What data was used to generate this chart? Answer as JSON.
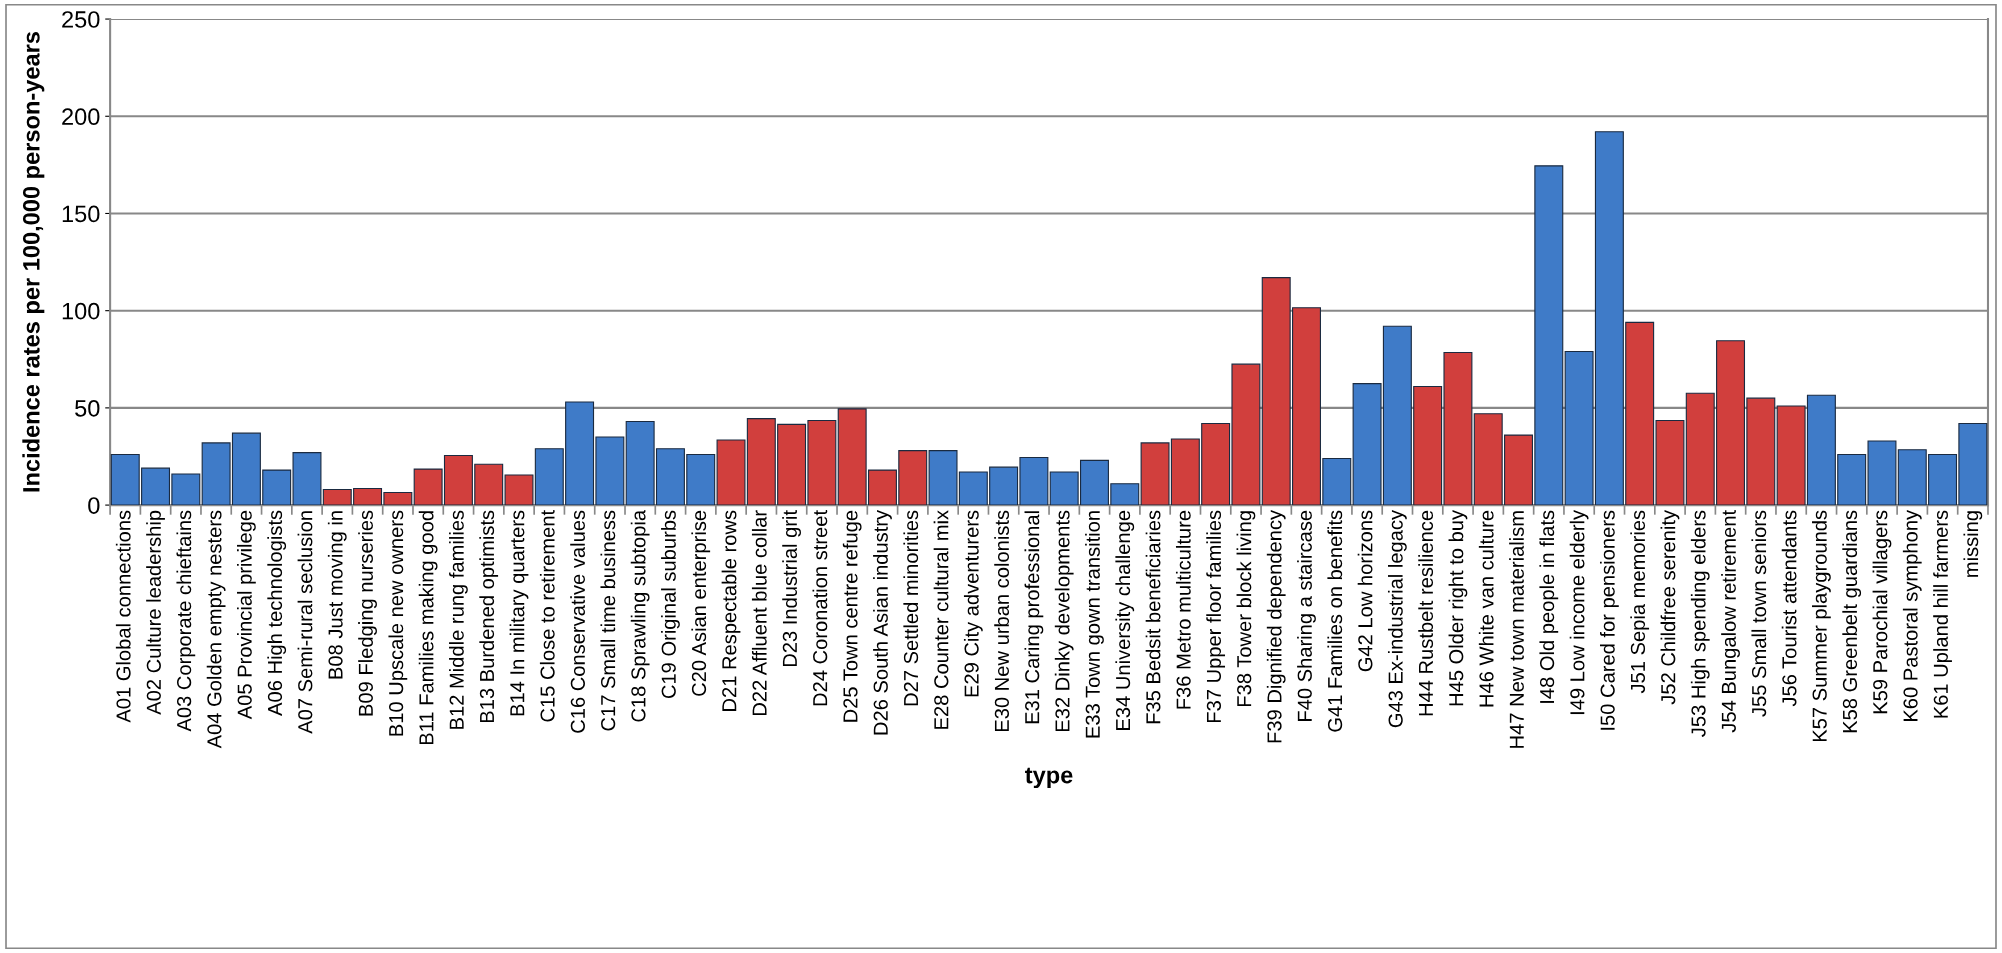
{
  "chart_data": {
    "type": "bar",
    "xlabel": "type",
    "ylabel": "Incidence rates per 100,000 person-years",
    "categories": [
      "A01 Global connections",
      "A02 Culture leadership",
      "A03 Corporate chieftains",
      "A04 Golden empty nesters",
      "A05 Provincial privilege",
      "A06 High technologists",
      "A07 Semi-rural seclusion",
      "B08 Just moving in",
      "B09 Fledging nurseries",
      "B10 Upscale new owners",
      "B11 Families making good",
      "B12 Middle rung families",
      "B13 Burdened optimists",
      "B14 In military quarters",
      "C15 Close to retirement",
      "C16 Conservative values",
      "C17 Small time business",
      "C18 Sprawling subtopia",
      "C19 Original suburbs",
      "C20 Asian enterprise",
      "D21 Respectable rows",
      "D22 Affluent blue collar",
      "D23 Industrial grit",
      "D24 Coronation street",
      "D25 Town centre refuge",
      "D26 South Asian industry",
      "D27 Settled minorities",
      "E28 Counter cultural mix",
      "E29 City adventurers",
      "E30 New urban colonists",
      "E31 Caring professional",
      "E32 Dinky developments",
      "E33 Town gown transition",
      "E34 University challenge",
      "F35 Bedsit beneficiaries",
      "F36 Metro multiculture",
      "F37 Upper floor families",
      "F38 Tower block living",
      "F39 Dignified dependency",
      "F40 Sharing a staircase",
      "G41 Families on benefits",
      "G42 Low horizons",
      "G43 Ex-industrial legacy",
      "H44 Rustbelt resilience",
      "H45 Older right to buy",
      "H46 White van culture",
      "H47 New town materialism",
      "I48 Old people in flats",
      "I49 Low income elderly",
      "I50 Cared for pensioners",
      "J51 Sepia memories",
      "J52 Childfree serenity",
      "J53 High spending elders",
      "J54 Bungalow retirement",
      "J55 Small town seniors",
      "J56 Tourist attendants",
      "K57 Summer playgrounds",
      "K58 Greenbelt guardians",
      "K59 Parochial villagers",
      "K60 Pastoral symphony",
      "K61 Upland hill farmers",
      "missing"
    ],
    "values": [
      26,
      19,
      16,
      32,
      37,
      18,
      27,
      8,
      8.5,
      6.5,
      18.5,
      25.5,
      21,
      15.5,
      29,
      53,
      35,
      43,
      29,
      26,
      33.5,
      44.5,
      41.5,
      43.5,
      49.5,
      18,
      28,
      28,
      17,
      19.5,
      24.5,
      17,
      23,
      11,
      32,
      34,
      42,
      72.5,
      117,
      101.5,
      24,
      62.5,
      92,
      61,
      78.5,
      47,
      36,
      174.5,
      79,
      192,
      94,
      43.5,
      57.5,
      84.5,
      55,
      51,
      56.5,
      26,
      33,
      28.5,
      26,
      42
    ],
    "colors": [
      "#3f7bc8",
      "#3f7bc8",
      "#3f7bc8",
      "#3f7bc8",
      "#3f7bc8",
      "#3f7bc8",
      "#3f7bc8",
      "#d13f3d",
      "#d13f3d",
      "#d13f3d",
      "#d13f3d",
      "#d13f3d",
      "#d13f3d",
      "#d13f3d",
      "#3f7bc8",
      "#3f7bc8",
      "#3f7bc8",
      "#3f7bc8",
      "#3f7bc8",
      "#3f7bc8",
      "#d13f3d",
      "#d13f3d",
      "#d13f3d",
      "#d13f3d",
      "#d13f3d",
      "#d13f3d",
      "#d13f3d",
      "#3f7bc8",
      "#3f7bc8",
      "#3f7bc8",
      "#3f7bc8",
      "#3f7bc8",
      "#3f7bc8",
      "#3f7bc8",
      "#d13f3d",
      "#d13f3d",
      "#d13f3d",
      "#d13f3d",
      "#d13f3d",
      "#d13f3d",
      "#3f7bc8",
      "#3f7bc8",
      "#3f7bc8",
      "#d13f3d",
      "#d13f3d",
      "#d13f3d",
      "#d13f3d",
      "#3f7bc8",
      "#3f7bc8",
      "#3f7bc8",
      "#d13f3d",
      "#d13f3d",
      "#d13f3d",
      "#d13f3d",
      "#d13f3d",
      "#d13f3d",
      "#3f7bc8",
      "#3f7bc8",
      "#3f7bc8",
      "#3f7bc8",
      "#3f7bc8",
      "#3f7bc8"
    ],
    "ylim": [
      0,
      250
    ],
    "yticks": [
      0,
      50,
      100,
      150,
      200,
      250
    ],
    "grid": "y",
    "legend": false
  }
}
